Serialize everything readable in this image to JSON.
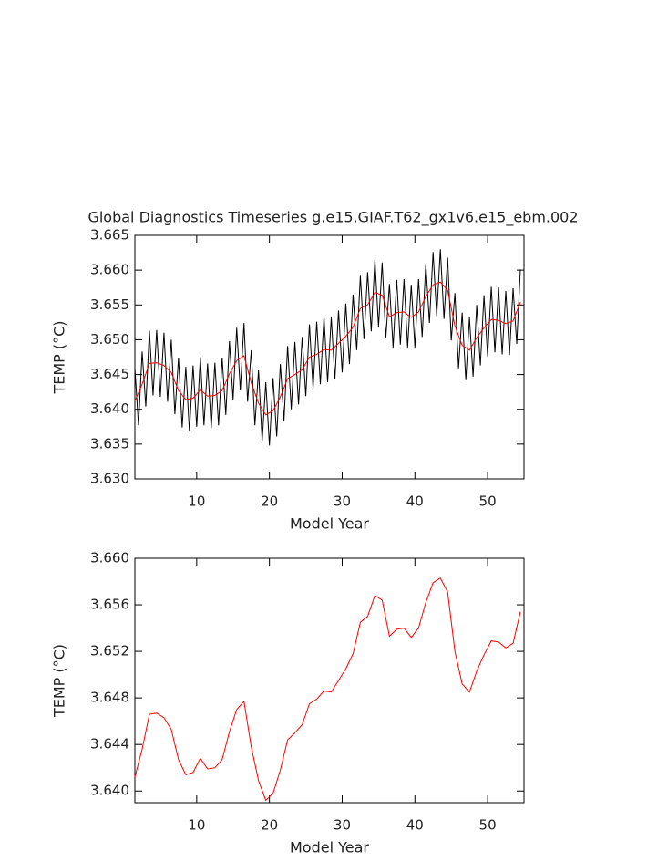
{
  "chart_data": [
    {
      "type": "line",
      "title": "Global Diagnostics Timeseries g.e15.GIAF.T62_gx1v6.e15_ebm.002",
      "x_label": "Model Year",
      "y_label": "TEMP (°C)",
      "xlim": [
        1.5,
        55
      ],
      "xticks": [
        10,
        20,
        30,
        40,
        50
      ],
      "ylim": [
        3.63,
        3.665
      ],
      "yticks": [
        {
          "value": 3.63,
          "label": "3.630"
        },
        3.635,
        {
          "value": 3.64,
          "label": "3.640"
        },
        3.645,
        {
          "value": 3.65,
          "label": "3.650"
        },
        3.655,
        {
          "value": 3.66,
          "label": "3.660"
        },
        3.665
      ],
      "series": [
        {
          "color": "#000000",
          "x": [
            1.5,
            2,
            2.5,
            3,
            3.5,
            4,
            4.5,
            5,
            5.5,
            6,
            6.5,
            7,
            7.5,
            8,
            8.5,
            9,
            9.5,
            10,
            10.5,
            11,
            11.5,
            12,
            12.5,
            13,
            13.5,
            14,
            14.5,
            15,
            15.5,
            16,
            16.5,
            17,
            17.5,
            18,
            18.5,
            19,
            19.5,
            20,
            20.5,
            21,
            21.5,
            22,
            22.5,
            23,
            23.5,
            24,
            24.5,
            25,
            25.5,
            26,
            26.5,
            27,
            27.5,
            28,
            28.5,
            29,
            29.5,
            30,
            30.5,
            31,
            31.5,
            32,
            32.5,
            33,
            33.5,
            34,
            34.5,
            35,
            35.5,
            36,
            36.5,
            37,
            37.5,
            38,
            38.5,
            39,
            39.5,
            40,
            40.5,
            41,
            41.5,
            42,
            42.5,
            43,
            43.5,
            44,
            44.5,
            45,
            45.5,
            46,
            46.5,
            47,
            47.5,
            48,
            48.5,
            49,
            49.5,
            50,
            50.5,
            51,
            51.5,
            52,
            52.5,
            53,
            53.5,
            54,
            54.5
          ],
          "values": [
            3.6459,
            3.6377,
            3.6483,
            3.6404,
            3.6513,
            3.642,
            3.6514,
            3.6418,
            3.651,
            3.6411,
            3.65,
            3.6393,
            3.6474,
            3.6374,
            3.6461,
            3.6368,
            3.6463,
            3.6375,
            3.6475,
            3.6377,
            3.6466,
            3.6373,
            3.6467,
            3.6377,
            3.6474,
            3.6392,
            3.6498,
            3.6414,
            3.6517,
            3.6427,
            3.6524,
            3.6411,
            3.6485,
            3.6377,
            3.6456,
            3.6354,
            3.6439,
            3.6348,
            3.6445,
            3.6361,
            3.6465,
            3.6384,
            3.6491,
            3.64,
            3.6497,
            3.6407,
            3.6504,
            3.6419,
            3.6522,
            3.643,
            3.6526,
            3.6436,
            3.6533,
            3.6439,
            3.6532,
            3.6443,
            3.6542,
            3.6453,
            3.6552,
            3.6465,
            3.6565,
            3.6485,
            3.6592,
            3.6501,
            3.6597,
            3.6512,
            3.6615,
            3.6519,
            3.6611,
            3.6502,
            3.658,
            3.6489,
            3.6586,
            3.6493,
            3.6587,
            3.6489,
            3.6579,
            3.6489,
            3.6587,
            3.6504,
            3.6609,
            3.6524,
            3.6626,
            3.6534,
            3.663,
            3.653,
            3.6618,
            3.6499,
            3.6567,
            3.6459,
            3.6539,
            3.6442,
            3.6532,
            3.6447,
            3.655,
            3.6463,
            3.6564,
            3.6476,
            3.6576,
            3.6482,
            3.6575,
            3.6479,
            3.657,
            3.6478,
            3.6574,
            3.6494,
            3.6601
          ]
        },
        {
          "color": "#ff0000",
          "x": [
            1.5,
            2.5,
            3.5,
            4.5,
            5.5,
            6.5,
            7.5,
            8.5,
            9.5,
            10.5,
            11.5,
            12.5,
            13.5,
            14.5,
            15.5,
            16.5,
            17.5,
            18.5,
            19.5,
            20.5,
            21.5,
            22.5,
            23.5,
            24.5,
            25.5,
            26.5,
            27.5,
            28.5,
            29.5,
            30.5,
            31.5,
            32.5,
            33.5,
            34.5,
            35.5,
            36.5,
            37.5,
            38.5,
            39.5,
            40.5,
            41.5,
            42.5,
            43.5,
            44.5,
            45.5,
            46.5,
            47.5,
            48.5,
            49.5,
            50.5,
            51.5,
            52.5,
            53.5,
            54.5
          ],
          "values": [
            3.6412,
            3.6436,
            3.6466,
            3.6467,
            3.6463,
            3.6453,
            3.6427,
            3.6414,
            3.6416,
            3.6428,
            3.6419,
            3.642,
            3.6427,
            3.6451,
            3.647,
            3.6477,
            3.6438,
            3.6409,
            3.6392,
            3.6398,
            3.6418,
            3.6444,
            3.645,
            3.6457,
            3.6475,
            3.6479,
            3.6486,
            3.6485,
            3.6495,
            3.6505,
            3.6518,
            3.6545,
            3.655,
            3.6568,
            3.6564,
            3.6533,
            3.6539,
            3.654,
            3.6532,
            3.654,
            3.6562,
            3.6579,
            3.6583,
            3.6571,
            3.652,
            3.6492,
            3.6485,
            3.6503,
            3.6517,
            3.6529,
            3.6528,
            3.6523,
            3.6527,
            3.6554
          ]
        }
      ]
    },
    {
      "type": "line",
      "x_label": "Model Year",
      "y_label": "TEMP (°C)",
      "xlim": [
        1.5,
        55
      ],
      "xticks": [
        10,
        20,
        30,
        40,
        50
      ],
      "ylim": [
        3.639,
        3.66
      ],
      "yticks": [
        {
          "value": 3.64,
          "label": "3.640"
        },
        3.644,
        3.648,
        3.652,
        3.656,
        {
          "value": 3.66,
          "label": "3.660"
        }
      ],
      "series": [
        {
          "color": "#ff0000",
          "x": [
            1.5,
            2.5,
            3.5,
            4.5,
            5.5,
            6.5,
            7.5,
            8.5,
            9.5,
            10.5,
            11.5,
            12.5,
            13.5,
            14.5,
            15.5,
            16.5,
            17.5,
            18.5,
            19.5,
            20.5,
            21.5,
            22.5,
            23.5,
            24.5,
            25.5,
            26.5,
            27.5,
            28.5,
            29.5,
            30.5,
            31.5,
            32.5,
            33.5,
            34.5,
            35.5,
            36.5,
            37.5,
            38.5,
            39.5,
            40.5,
            41.5,
            42.5,
            43.5,
            44.5,
            45.5,
            46.5,
            47.5,
            48.5,
            49.5,
            50.5,
            51.5,
            52.5,
            53.5,
            54.5
          ],
          "values": [
            3.6412,
            3.6436,
            3.6466,
            3.6467,
            3.6463,
            3.6453,
            3.6427,
            3.6414,
            3.6416,
            3.6428,
            3.6419,
            3.642,
            3.6427,
            3.6451,
            3.647,
            3.6477,
            3.6438,
            3.6409,
            3.6392,
            3.6398,
            3.6418,
            3.6444,
            3.645,
            3.6457,
            3.6475,
            3.6479,
            3.6486,
            3.6485,
            3.6495,
            3.6505,
            3.6518,
            3.6545,
            3.655,
            3.6568,
            3.6564,
            3.6533,
            3.6539,
            3.654,
            3.6532,
            3.654,
            3.6562,
            3.6579,
            3.6583,
            3.6571,
            3.652,
            3.6492,
            3.6485,
            3.6503,
            3.6517,
            3.6529,
            3.6528,
            3.6523,
            3.6527,
            3.6554
          ]
        }
      ]
    }
  ]
}
